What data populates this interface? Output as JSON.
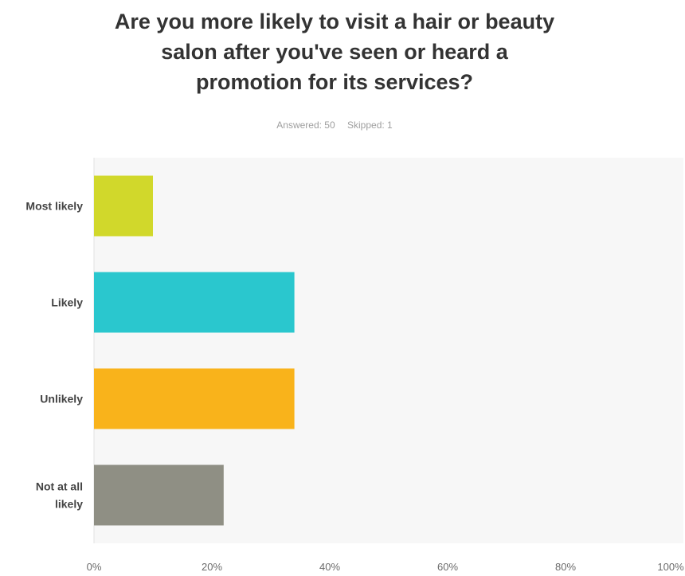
{
  "header": {
    "title_lines": [
      "Are you more likely to visit a hair or beauty",
      "salon after you've seen or heard a",
      "promotion for its services?"
    ],
    "answered": "Answered: 50",
    "skipped": "Skipped: 1"
  },
  "chart_data": {
    "type": "bar",
    "orientation": "horizontal",
    "title": "Are you more likely to visit a hair or beauty salon after you've seen or heard a promotion for its services?",
    "categories": [
      "Most likely",
      "Likely",
      "Unlikely",
      "Not at all likely"
    ],
    "category_lines": [
      [
        "Most likely"
      ],
      [
        "Likely"
      ],
      [
        "Unlikely"
      ],
      [
        "Not at all",
        "likely"
      ]
    ],
    "values": [
      10,
      34,
      34,
      22
    ],
    "unit": "%",
    "colors": [
      "#d1d82b",
      "#2ac7ce",
      "#f9b31b",
      "#8f8f84"
    ],
    "xlim": [
      0,
      100
    ],
    "xticks": [
      0,
      20,
      40,
      60,
      80,
      100
    ],
    "xtick_labels": [
      "0%",
      "20%",
      "40%",
      "60%",
      "80%",
      "100%"
    ],
    "grid": false,
    "legend": "none",
    "plot_background": "#f7f7f7"
  }
}
